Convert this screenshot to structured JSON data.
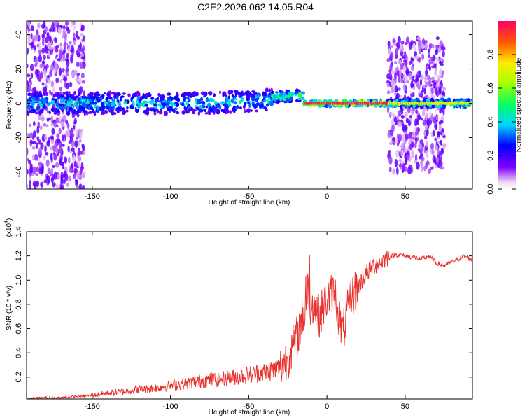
{
  "figure": {
    "title": "C2E2.2026.062.14.05.R04"
  },
  "chart_data": [
    {
      "type": "heatmap",
      "xlabel": "Height of straight line (km)",
      "ylabel": "Frequency (Hz)",
      "xlim": [
        -192,
        93
      ],
      "ylim": [
        -50,
        48
      ],
      "x_ticks": [
        -150,
        -100,
        -50,
        0,
        50
      ],
      "y_ticks": [
        -40,
        -20,
        0,
        20,
        40
      ],
      "colorbar": {
        "label": "Normalized spectral amplitude",
        "range": [
          0,
          1
        ],
        "ticks": [
          0.0,
          0.2,
          0.4,
          0.6,
          0.8
        ],
        "tick_labels": [
          "0.0",
          "0.2",
          "0.4",
          "0.6",
          "0.8"
        ]
      },
      "ridge": [
        {
          "x_range": [
            -192,
            -35
          ],
          "frequency": 0,
          "amplitude": 0.45,
          "spread": 6
        },
        {
          "x_range": [
            -35,
            -15
          ],
          "frequency": 2,
          "amplitude": 0.6,
          "spread": 3
        },
        {
          "x_range": [
            -15,
            39
          ],
          "frequency": 0,
          "amplitude": 0.95,
          "spread": 1.5
        },
        {
          "x_range": [
            39,
            93
          ],
          "frequency": 0,
          "amplitude": 0.7,
          "spread": 2
        }
      ],
      "noise_regions": [
        {
          "x_range": [
            -192,
            -155
          ],
          "frequency_range": [
            -50,
            48
          ],
          "amplitude": 0.15
        },
        {
          "x_range": [
            39,
            75
          ],
          "frequency_range": [
            -40,
            38
          ],
          "amplitude": 0.15
        }
      ]
    },
    {
      "type": "line",
      "xlabel": "Height of straight line (km)",
      "ylabel": "SNR (10 * v/v)",
      "y_scale_label": "(x10",
      "y_scale_exp": "4",
      "xlim": [
        -192,
        93
      ],
      "ylim": [
        0.02,
        1.4
      ],
      "x_ticks": [
        -150,
        -100,
        -50,
        0,
        50
      ],
      "y_ticks": [
        0.2,
        0.4,
        0.6,
        0.8,
        1.0,
        1.2,
        1.4
      ],
      "y_tick_labels": [
        "0.2",
        "0.4",
        "0.6",
        "0.8",
        "1.0",
        "1.2",
        "1.4"
      ],
      "color": "#e8322e",
      "series": [
        {
          "name": "",
          "x": [
            -192,
            -180,
            -170,
            -160,
            -150,
            -140,
            -130,
            -120,
            -110,
            -100,
            -90,
            -80,
            -70,
            -60,
            -50,
            -40,
            -30,
            -25,
            -20,
            -15,
            -12,
            -10,
            -5,
            0,
            5,
            10,
            15,
            20,
            25,
            30,
            35,
            40,
            45,
            50,
            55,
            60,
            65,
            70,
            75,
            80,
            85,
            88,
            93
          ],
          "values": [
            0.02,
            0.03,
            0.03,
            0.04,
            0.05,
            0.07,
            0.08,
            0.1,
            0.11,
            0.13,
            0.15,
            0.17,
            0.18,
            0.2,
            0.22,
            0.24,
            0.28,
            0.36,
            0.5,
            0.72,
            0.6,
            0.85,
            0.7,
            0.85,
            0.9,
            0.55,
            0.85,
            0.95,
            1.05,
            1.12,
            1.16,
            1.2,
            1.21,
            1.2,
            1.19,
            1.17,
            1.2,
            1.14,
            1.12,
            1.15,
            1.18,
            1.2,
            1.16
          ]
        }
      ]
    }
  ]
}
